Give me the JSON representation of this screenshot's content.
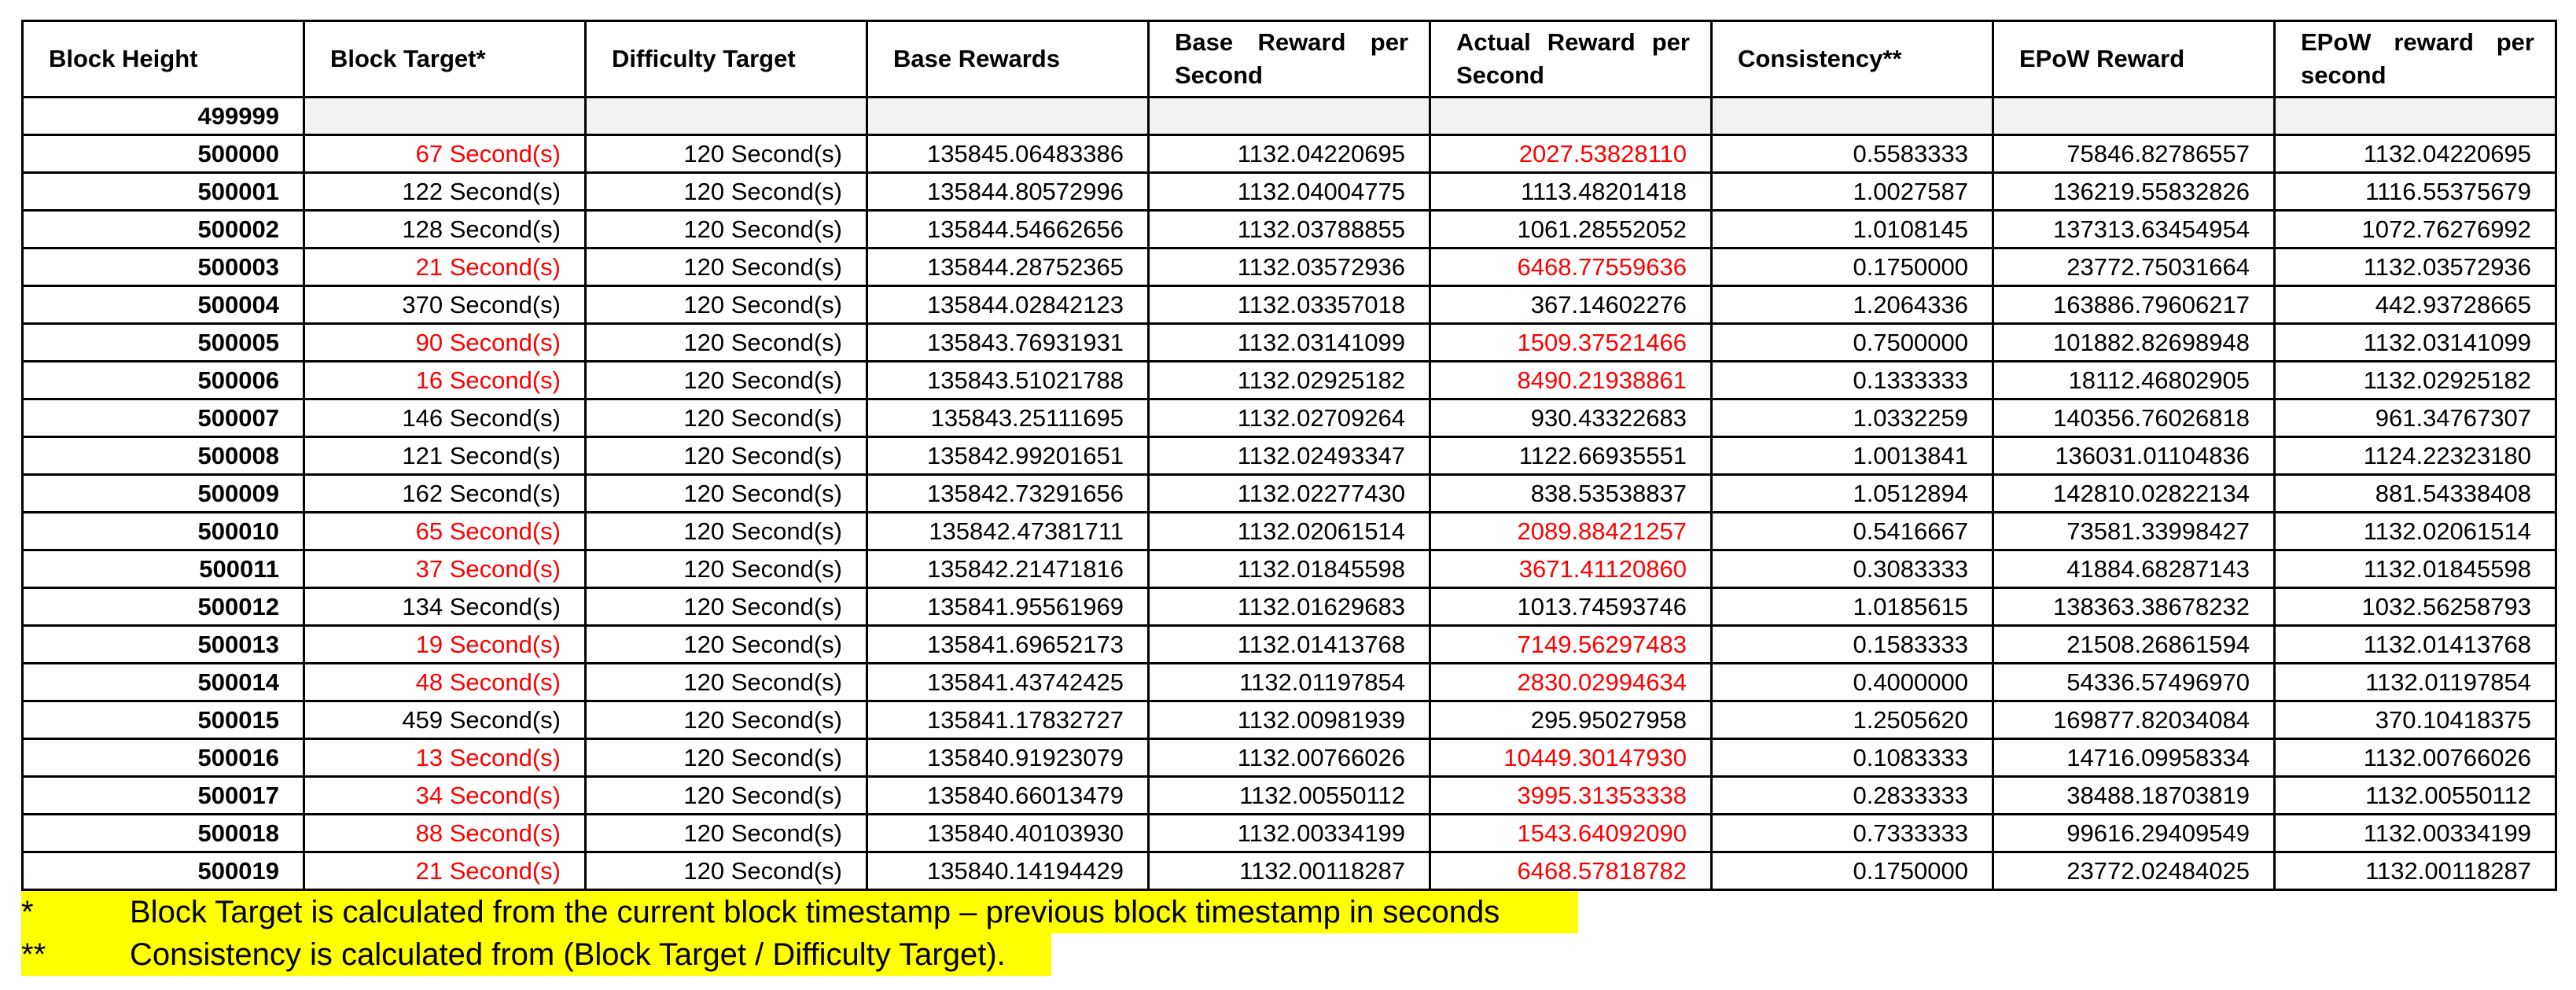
{
  "headers": [
    "Block Height",
    "Block Target*",
    "Difficulty Target",
    "Base Rewards",
    "Base Reward per Second",
    "Actual Reward per Second",
    "Consistency**",
    "EPoW Reward",
    "EPoW reward per second"
  ],
  "first_row": {
    "height": "499999"
  },
  "rows": [
    {
      "height": "500000",
      "target": "67 Second(s)",
      "difficulty": "120 Second(s)",
      "base": "135845.06483386",
      "base_ps": "1132.04220695",
      "actual_ps": "2027.53828110",
      "consistency": "0.5583333",
      "epow": "75846.82786557",
      "epow_ps": "1132.04220695",
      "red": true
    },
    {
      "height": "500001",
      "target": "122 Second(s)",
      "difficulty": "120 Second(s)",
      "base": "135844.80572996",
      "base_ps": "1132.04004775",
      "actual_ps": "1113.48201418",
      "consistency": "1.0027587",
      "epow": "136219.55832826",
      "epow_ps": "1116.55375679",
      "red": false
    },
    {
      "height": "500002",
      "target": "128 Second(s)",
      "difficulty": "120 Second(s)",
      "base": "135844.54662656",
      "base_ps": "1132.03788855",
      "actual_ps": "1061.28552052",
      "consistency": "1.0108145",
      "epow": "137313.63454954",
      "epow_ps": "1072.76276992",
      "red": false
    },
    {
      "height": "500003",
      "target": "21 Second(s)",
      "difficulty": "120 Second(s)",
      "base": "135844.28752365",
      "base_ps": "1132.03572936",
      "actual_ps": "6468.77559636",
      "consistency": "0.1750000",
      "epow": "23772.75031664",
      "epow_ps": "1132.03572936",
      "red": true
    },
    {
      "height": "500004",
      "target": "370 Second(s)",
      "difficulty": "120 Second(s)",
      "base": "135844.02842123",
      "base_ps": "1132.03357018",
      "actual_ps": "367.14602276",
      "consistency": "1.2064336",
      "epow": "163886.79606217",
      "epow_ps": "442.93728665",
      "red": false
    },
    {
      "height": "500005",
      "target": "90 Second(s)",
      "difficulty": "120 Second(s)",
      "base": "135843.76931931",
      "base_ps": "1132.03141099",
      "actual_ps": "1509.37521466",
      "consistency": "0.7500000",
      "epow": "101882.82698948",
      "epow_ps": "1132.03141099",
      "red": true
    },
    {
      "height": "500006",
      "target": "16 Second(s)",
      "difficulty": "120 Second(s)",
      "base": "135843.51021788",
      "base_ps": "1132.02925182",
      "actual_ps": "8490.21938861",
      "consistency": "0.1333333",
      "epow": "18112.46802905",
      "epow_ps": "1132.02925182",
      "red": true
    },
    {
      "height": "500007",
      "target": "146 Second(s)",
      "difficulty": "120 Second(s)",
      "base": "135843.25111695",
      "base_ps": "1132.02709264",
      "actual_ps": "930.43322683",
      "consistency": "1.0332259",
      "epow": "140356.76026818",
      "epow_ps": "961.34767307",
      "red": false
    },
    {
      "height": "500008",
      "target": "121 Second(s)",
      "difficulty": "120 Second(s)",
      "base": "135842.99201651",
      "base_ps": "1132.02493347",
      "actual_ps": "1122.66935551",
      "consistency": "1.0013841",
      "epow": "136031.01104836",
      "epow_ps": "1124.22323180",
      "red": false
    },
    {
      "height": "500009",
      "target": "162 Second(s)",
      "difficulty": "120 Second(s)",
      "base": "135842.73291656",
      "base_ps": "1132.02277430",
      "actual_ps": "838.53538837",
      "consistency": "1.0512894",
      "epow": "142810.02822134",
      "epow_ps": "881.54338408",
      "red": false
    },
    {
      "height": "500010",
      "target": "65 Second(s)",
      "difficulty": "120 Second(s)",
      "base": "135842.47381711",
      "base_ps": "1132.02061514",
      "actual_ps": "2089.88421257",
      "consistency": "0.5416667",
      "epow": "73581.33998427",
      "epow_ps": "1132.02061514",
      "red": true
    },
    {
      "height": "500011",
      "target": "37 Second(s)",
      "difficulty": "120 Second(s)",
      "base": "135842.21471816",
      "base_ps": "1132.01845598",
      "actual_ps": "3671.41120860",
      "consistency": "0.3083333",
      "epow": "41884.68287143",
      "epow_ps": "1132.01845598",
      "red": true
    },
    {
      "height": "500012",
      "target": "134 Second(s)",
      "difficulty": "120 Second(s)",
      "base": "135841.95561969",
      "base_ps": "1132.01629683",
      "actual_ps": "1013.74593746",
      "consistency": "1.0185615",
      "epow": "138363.38678232",
      "epow_ps": "1032.56258793",
      "red": false
    },
    {
      "height": "500013",
      "target": "19 Second(s)",
      "difficulty": "120 Second(s)",
      "base": "135841.69652173",
      "base_ps": "1132.01413768",
      "actual_ps": "7149.56297483",
      "consistency": "0.1583333",
      "epow": "21508.26861594",
      "epow_ps": "1132.01413768",
      "red": true
    },
    {
      "height": "500014",
      "target": "48 Second(s)",
      "difficulty": "120 Second(s)",
      "base": "135841.43742425",
      "base_ps": "1132.01197854",
      "actual_ps": "2830.02994634",
      "consistency": "0.4000000",
      "epow": "54336.57496970",
      "epow_ps": "1132.01197854",
      "red": true
    },
    {
      "height": "500015",
      "target": "459 Second(s)",
      "difficulty": "120 Second(s)",
      "base": "135841.17832727",
      "base_ps": "1132.00981939",
      "actual_ps": "295.95027958",
      "consistency": "1.2505620",
      "epow": "169877.82034084",
      "epow_ps": "370.10418375",
      "red": false
    },
    {
      "height": "500016",
      "target": "13 Second(s)",
      "difficulty": "120 Second(s)",
      "base": "135840.91923079",
      "base_ps": "1132.00766026",
      "actual_ps": "10449.30147930",
      "consistency": "0.1083333",
      "epow": "14716.09958334",
      "epow_ps": "1132.00766026",
      "red": true
    },
    {
      "height": "500017",
      "target": "34 Second(s)",
      "difficulty": "120 Second(s)",
      "base": "135840.66013479",
      "base_ps": "1132.00550112",
      "actual_ps": "3995.31353338",
      "consistency": "0.2833333",
      "epow": "38488.18703819",
      "epow_ps": "1132.00550112",
      "red": true
    },
    {
      "height": "500018",
      "target": "88 Second(s)",
      "difficulty": "120 Second(s)",
      "base": "135840.40103930",
      "base_ps": "1132.00334199",
      "actual_ps": "1543.64092090",
      "consistency": "0.7333333",
      "epow": "99616.29409549",
      "epow_ps": "1132.00334199",
      "red": true
    },
    {
      "height": "500019",
      "target": "21 Second(s)",
      "difficulty": "120 Second(s)",
      "base": "135840.14194429",
      "base_ps": "1132.00118287",
      "actual_ps": "6468.57818782",
      "consistency": "0.1750000",
      "epow": "23772.02484025",
      "epow_ps": "1132.00118287",
      "red": true
    }
  ],
  "notes": [
    {
      "mark": "*",
      "text": "Block Target is calculated from the current block timestamp – previous block timestamp in seconds"
    },
    {
      "mark": "**",
      "text": "Consistency is calculated from (Block Target / Difficulty Target)."
    }
  ],
  "colors": {
    "highlight_text": "#ff0000",
    "note_highlight": "#ffff00",
    "empty_cell_fill": "#f2f2f2",
    "grid": "#000000"
  }
}
